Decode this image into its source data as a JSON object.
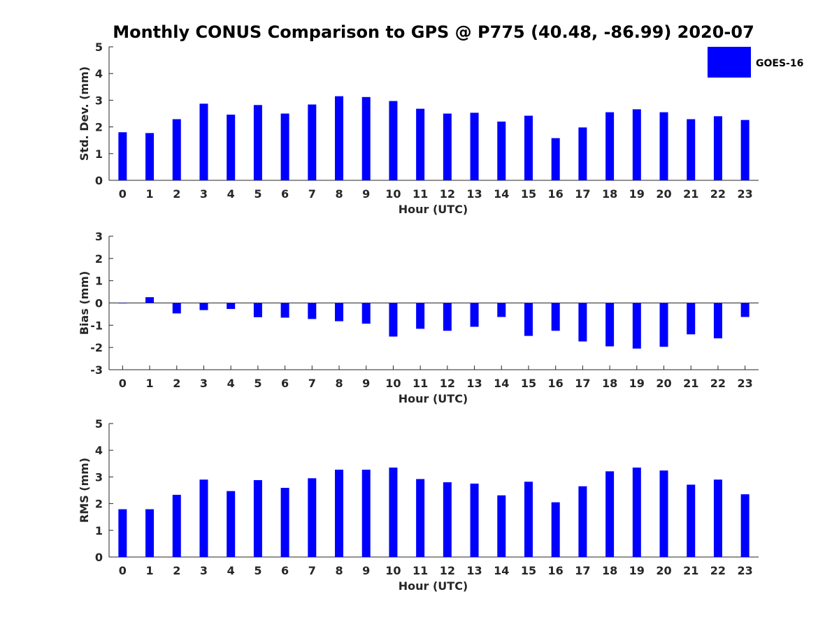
{
  "title": "Monthly CONUS Comparison to GPS @ P775 (40.48, -86.99) 2020-07",
  "legend": {
    "label": "GOES-16",
    "color": "#0000ff"
  },
  "chart_data": [
    {
      "type": "bar",
      "id": "std",
      "xlabel": "Hour (UTC)",
      "ylabel": "Std. Dev. (mm)",
      "ylim": [
        0,
        5
      ],
      "yticks": [
        0,
        1,
        2,
        3,
        4,
        5
      ],
      "categories": [
        "0",
        "1",
        "2",
        "3",
        "4",
        "5",
        "6",
        "7",
        "8",
        "9",
        "10",
        "11",
        "12",
        "13",
        "14",
        "15",
        "16",
        "17",
        "18",
        "19",
        "20",
        "21",
        "22",
        "23"
      ],
      "series": [
        {
          "name": "GOES-16",
          "color": "#0000ff",
          "values": [
            1.8,
            1.77,
            2.29,
            2.87,
            2.46,
            2.82,
            2.5,
            2.84,
            3.15,
            3.12,
            2.97,
            2.68,
            2.5,
            2.53,
            2.2,
            2.42,
            1.58,
            1.98,
            2.55,
            2.66,
            2.55,
            2.29,
            2.4,
            2.26
          ]
        }
      ]
    },
    {
      "type": "bar",
      "id": "bias",
      "xlabel": "Hour (UTC)",
      "ylabel": "Bias (mm)",
      "ylim": [
        -3,
        3
      ],
      "yticks": [
        -3,
        -2,
        -1,
        0,
        1,
        2,
        3
      ],
      "zero_line": true,
      "categories": [
        "0",
        "1",
        "2",
        "3",
        "4",
        "5",
        "6",
        "7",
        "8",
        "9",
        "10",
        "11",
        "12",
        "13",
        "14",
        "15",
        "16",
        "17",
        "18",
        "19",
        "20",
        "21",
        "22",
        "23"
      ],
      "series": [
        {
          "name": "GOES-16",
          "color": "#0000ff",
          "values": [
            -0.02,
            0.26,
            -0.47,
            -0.32,
            -0.27,
            -0.64,
            -0.66,
            -0.72,
            -0.82,
            -0.93,
            -1.51,
            -1.16,
            -1.25,
            -1.07,
            -0.63,
            -1.48,
            -1.25,
            -1.73,
            -1.95,
            -2.05,
            -1.97,
            -1.41,
            -1.59,
            -0.63
          ]
        }
      ]
    },
    {
      "type": "bar",
      "id": "rms",
      "xlabel": "Hour (UTC)",
      "ylabel": "RMS (mm)",
      "ylim": [
        0,
        5
      ],
      "yticks": [
        0,
        1,
        2,
        3,
        4,
        5
      ],
      "categories": [
        "0",
        "1",
        "2",
        "3",
        "4",
        "5",
        "6",
        "7",
        "8",
        "9",
        "10",
        "11",
        "12",
        "13",
        "14",
        "15",
        "16",
        "17",
        "18",
        "19",
        "20",
        "21",
        "22",
        "23"
      ],
      "series": [
        {
          "name": "GOES-16",
          "color": "#0000ff",
          "values": [
            1.79,
            1.79,
            2.33,
            2.9,
            2.47,
            2.88,
            2.59,
            2.95,
            3.27,
            3.27,
            3.35,
            2.92,
            2.8,
            2.75,
            2.31,
            2.82,
            2.05,
            2.65,
            3.21,
            3.35,
            3.24,
            2.71,
            2.9,
            2.35
          ]
        }
      ]
    }
  ]
}
